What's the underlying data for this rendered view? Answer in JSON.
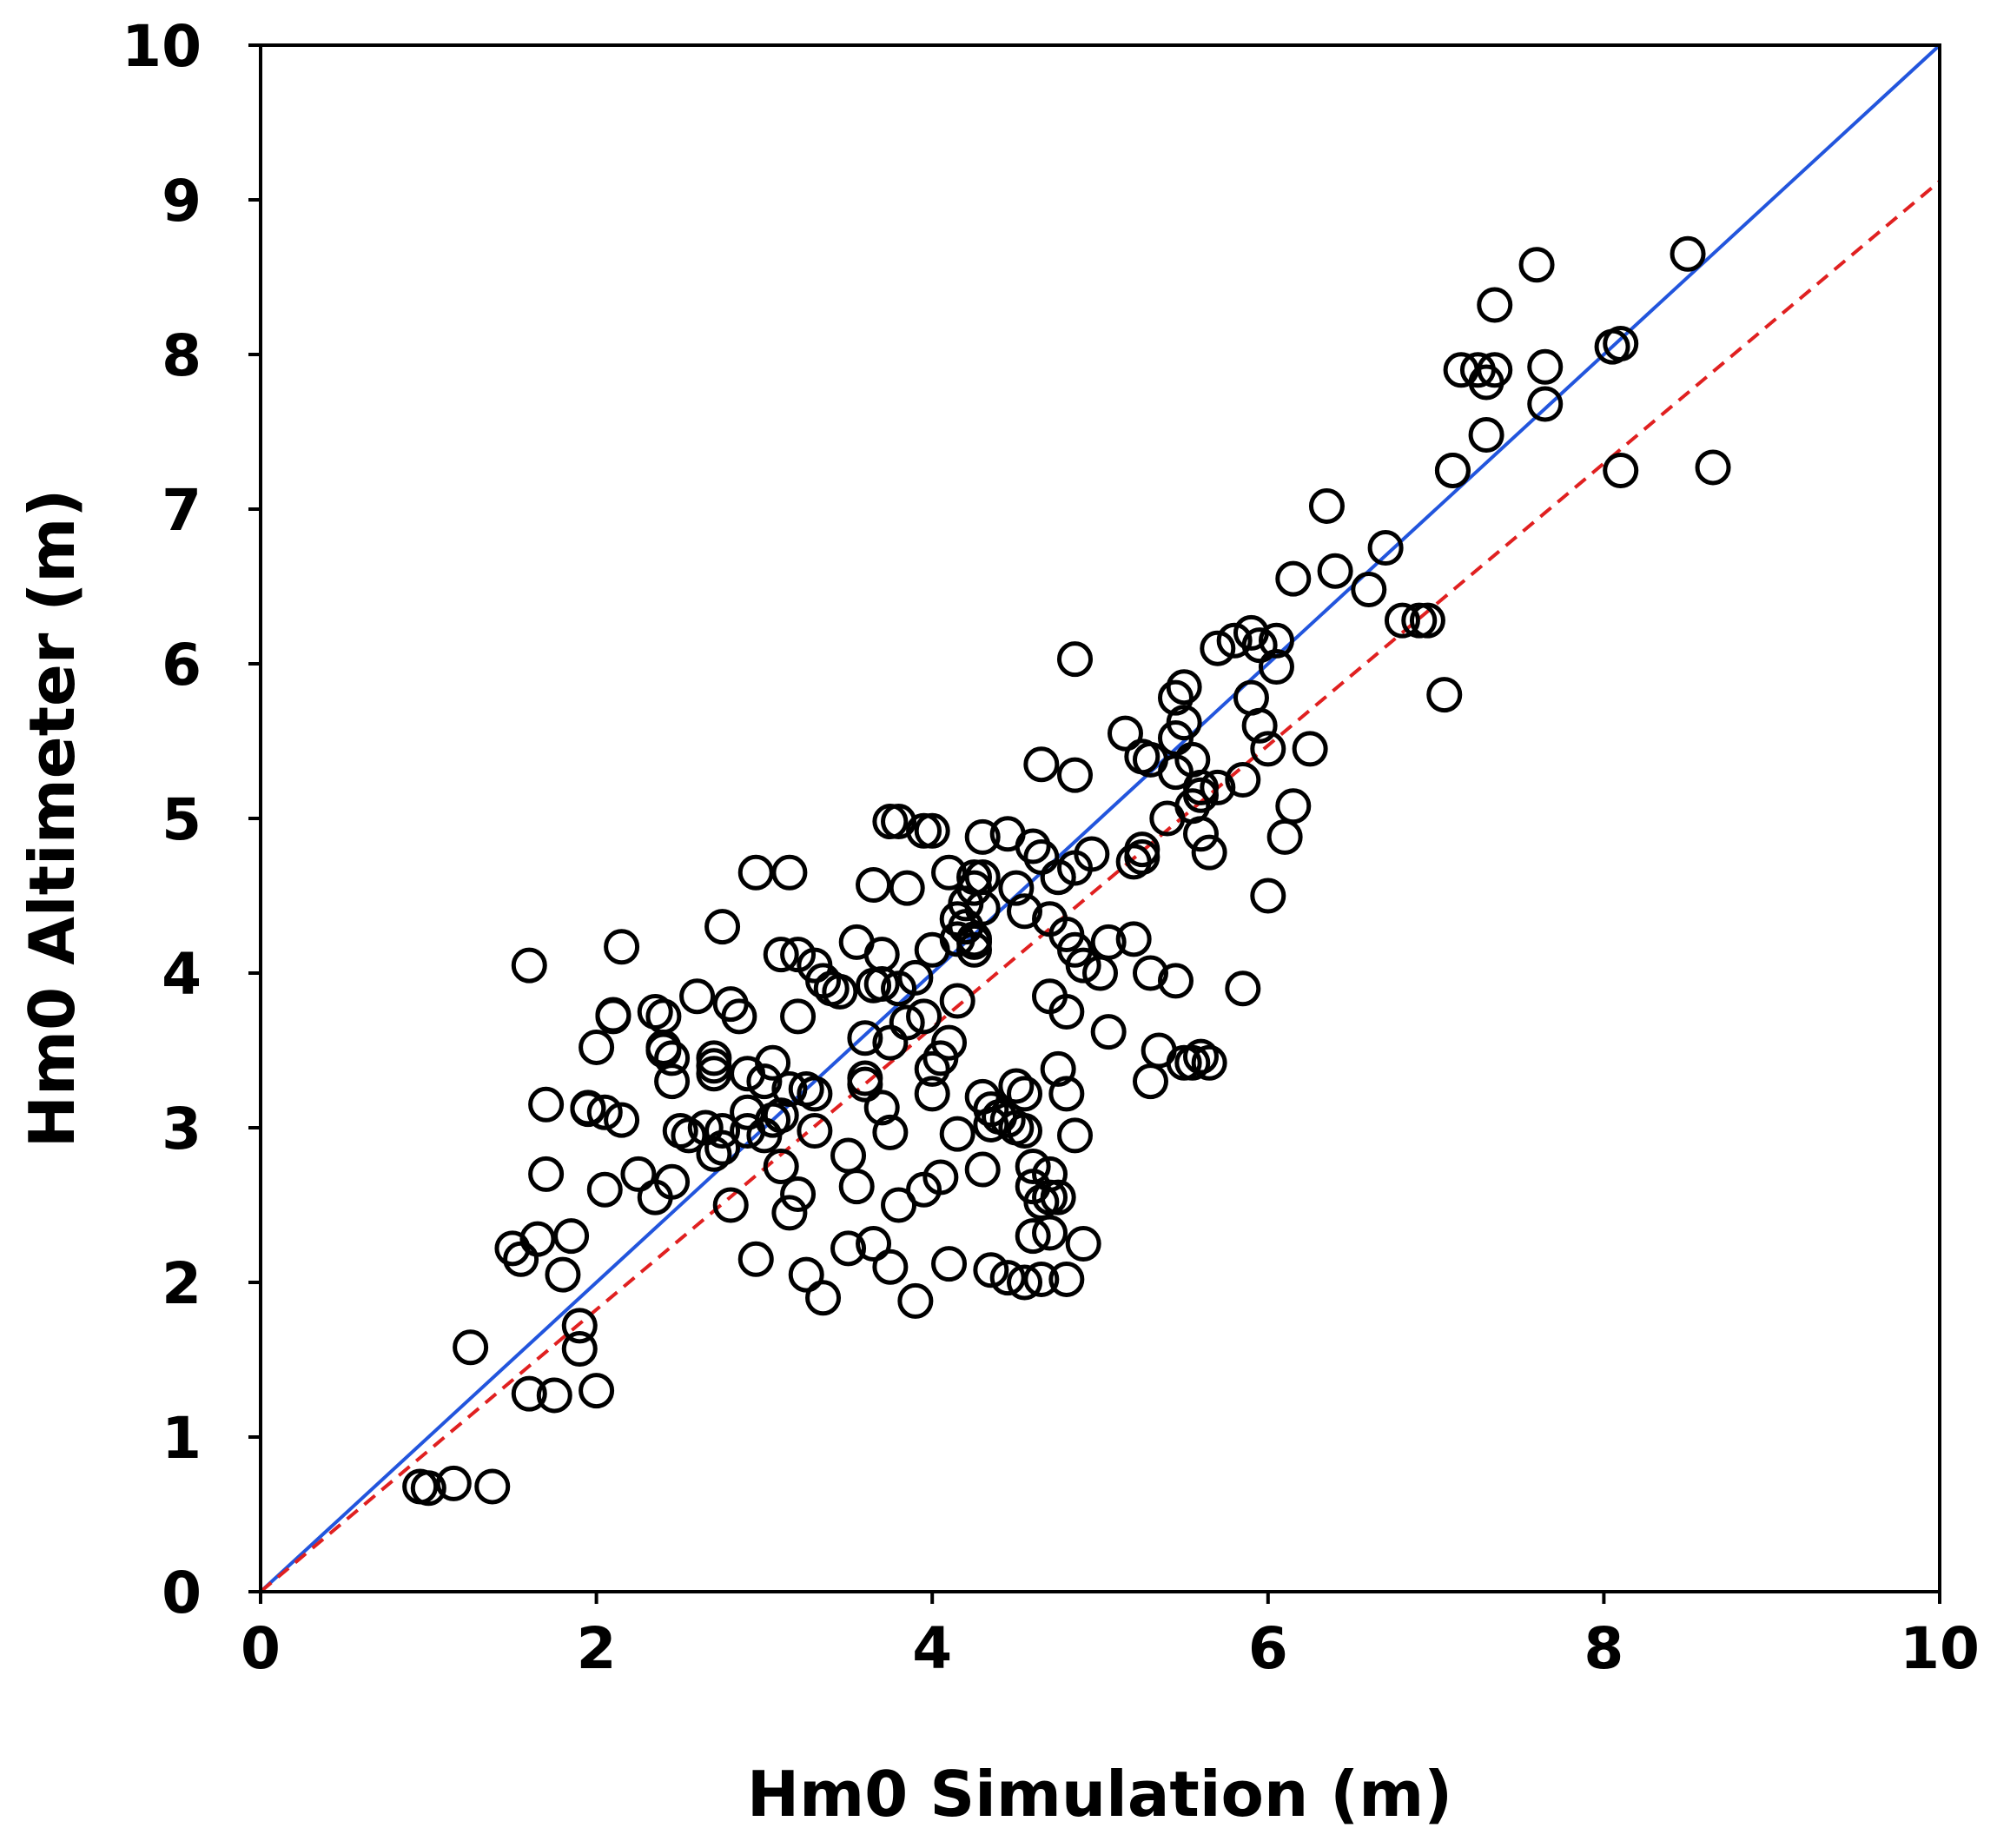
{
  "chart_data": {
    "type": "scatter",
    "title": "",
    "xlabel": "Hm0 Simulation (m)",
    "ylabel": "Hm0 Altimeter (m)",
    "xlim": [
      0,
      10
    ],
    "ylim": [
      0,
      10
    ],
    "xticks": [
      0,
      2,
      4,
      6,
      8,
      10
    ],
    "yticks": [
      0,
      1,
      2,
      3,
      4,
      5,
      6,
      7,
      8,
      9,
      10
    ],
    "grid": false,
    "colors": {
      "identity": "#2255dd",
      "fit": "#e02020",
      "points": "#000000"
    },
    "lines": [
      {
        "name": "1:1 line",
        "style": "solid",
        "color": "#2255dd",
        "x": [
          0,
          10
        ],
        "y": [
          0,
          10
        ]
      },
      {
        "name": "regression fit",
        "style": "dashed",
        "color": "#e02020",
        "x": [
          0,
          10
        ],
        "y": [
          0,
          9.12
        ]
      }
    ],
    "series": [
      {
        "name": "observations",
        "marker": "open-circle",
        "x": [
          0.95,
          1.0,
          1.15,
          1.38,
          1.25,
          1.75,
          1.6,
          1.9,
          2.0,
          1.5,
          1.55,
          1.65,
          1.85,
          1.9,
          1.8,
          1.7,
          1.95,
          2.05,
          2.1,
          2.25,
          2.35,
          2.45,
          2.4,
          2.55,
          2.7,
          2.8,
          2.95,
          3.0,
          3.1,
          3.15,
          3.2,
          3.25,
          3.35,
          3.3,
          3.5,
          3.55,
          3.65,
          3.75,
          3.8,
          3.9,
          3.95,
          4.05,
          4.1,
          4.15,
          4.3,
          4.35,
          4.45,
          4.5,
          4.55,
          4.6,
          4.65,
          4.7,
          4.75,
          4.8,
          4.9,
          2.95,
          3.15,
          3.2,
          3.3,
          3.55,
          3.7,
          3.85,
          3.95,
          4.1,
          4.25,
          4.3,
          4.45,
          4.6,
          4.65,
          4.75,
          4.85,
          1.6,
          1.7,
          1.95,
          2.0,
          2.1,
          2.15,
          2.35,
          2.4,
          2.5,
          2.6,
          2.7,
          2.75,
          2.8,
          2.85,
          2.9,
          3.0,
          3.05,
          3.1,
          3.15,
          3.2,
          3.3,
          3.35,
          3.45,
          3.6,
          3.65,
          3.7,
          3.8,
          3.85,
          3.9,
          4.0,
          4.05,
          4.1,
          4.15,
          4.2,
          4.25,
          4.3,
          4.35,
          4.4,
          4.5,
          4.55,
          4.6,
          4.65,
          4.7,
          4.75,
          4.8,
          4.85,
          4.9,
          5.0,
          5.05,
          5.2,
          5.25,
          5.3,
          5.35,
          5.45,
          5.5,
          5.55,
          5.6,
          5.65,
          5.85,
          5.3,
          2.05,
          2.4,
          2.75,
          2.7,
          3.1,
          3.4,
          3.6,
          3.7,
          3.75,
          4.0,
          4.15,
          4.2,
          4.25,
          4.35,
          4.45,
          4.55,
          4.6,
          4.7,
          4.8,
          4.85,
          4.7,
          4.55,
          4.25,
          4.3,
          3.95,
          3.75,
          3.6,
          3.25,
          3.5,
          2.75,
          2.9,
          3.05,
          2.9,
          2.65,
          2.15,
          2.45,
          2.45,
          2.7,
          3.75,
          4.0,
          4.25,
          4.3,
          4.5,
          4.7,
          4.8,
          4.95,
          5.05,
          5.2,
          5.25,
          5.4,
          5.45,
          5.5,
          5.55,
          5.6,
          5.7,
          5.9,
          5.95,
          6.0,
          6.1,
          6.15,
          6.05,
          5.6,
          5.65,
          5.8,
          5.95,
          5.5,
          5.55,
          5.85,
          6.0,
          5.45,
          5.25,
          5.15,
          5.3,
          5.45,
          5.6,
          5.7,
          5.9,
          6.05,
          6.15,
          6.25,
          6.35,
          6.4,
          6.6,
          6.7,
          6.8,
          6.9,
          6.95,
          7.1,
          7.15,
          7.3,
          7.05,
          7.3,
          7.1,
          7.25,
          7.35,
          7.65,
          7.65,
          7.6,
          7.35,
          8.05,
          8.1,
          8.5,
          8.65,
          8.1,
          4.85,
          4.65,
          3.8,
          3.65,
          4.0,
          4.15,
          4.75,
          4.85
        ],
        "y": [
          0.68,
          0.67,
          0.7,
          0.68,
          1.58,
          1.27,
          1.28,
          1.72,
          1.3,
          2.22,
          2.15,
          2.28,
          2.3,
          1.57,
          2.05,
          2.7,
          3.13,
          2.6,
          3.73,
          2.7,
          2.55,
          2.65,
          3.5,
          2.95,
          2.83,
          2.5,
          2.15,
          2.95,
          2.75,
          2.45,
          2.57,
          2.05,
          1.9,
          2.98,
          2.22,
          2.62,
          2.25,
          2.1,
          2.5,
          1.88,
          2.6,
          2.68,
          2.12,
          2.96,
          2.73,
          2.08,
          2.03,
          3.0,
          2.0,
          2.3,
          2.02,
          2.32,
          2.55,
          2.02,
          2.25,
          4.65,
          4.65,
          4.12,
          4.05,
          4.2,
          4.12,
          4.55,
          4.92,
          4.65,
          4.62,
          4.88,
          4.9,
          4.82,
          4.75,
          4.62,
          4.68,
          4.05,
          3.15,
          3.12,
          3.52,
          3.72,
          4.17,
          3.75,
          3.52,
          2.98,
          3.85,
          3.45,
          4.3,
          3.8,
          3.72,
          3.35,
          3.3,
          3.42,
          4.12,
          3.25,
          3.72,
          3.22,
          3.95,
          3.88,
          3.32,
          3.92,
          3.93,
          3.9,
          3.68,
          3.97,
          3.38,
          3.45,
          3.55,
          3.82,
          4.3,
          4.2,
          3.2,
          3.12,
          3.07,
          3.27,
          2.98,
          2.62,
          2.52,
          2.7,
          3.38,
          3.22,
          2.95,
          4.05,
          4.0,
          3.62,
          4.22,
          4.8,
          4.0,
          3.5,
          3.95,
          3.42,
          3.42,
          3.46,
          3.42,
          3.9,
          3.3,
          3.1,
          3.72,
          2.98,
          3.35,
          3.08,
          3.9,
          3.28,
          3.13,
          2.97,
          3.22,
          4.22,
          4.45,
          4.15,
          3.02,
          3.05,
          3.22,
          2.75,
          2.55,
          3.75,
          4.15,
          3.85,
          4.4,
          4.22,
          4.42,
          3.72,
          3.55,
          3.58,
          3.25,
          2.82,
          2.87,
          3.1,
          3.05,
          2.98,
          3.0,
          3.05,
          3.45,
          3.3,
          3.4,
          4.98,
          4.92,
          4.55,
          4.62,
          4.55,
          4.35,
          4.25,
          4.77,
          4.2,
          4.72,
          4.75,
          5.0,
          5.52,
          5.62,
          5.38,
          4.9,
          5.2,
          5.78,
          5.6,
          4.5,
          4.88,
          5.08,
          6.15,
          5.15,
          4.78,
          6.15,
          6.12,
          5.85,
          5.08,
          5.25,
          5.45,
          5.3,
          5.4,
          5.55,
          5.38,
          5.78,
          5.2,
          6.1,
          6.2,
          5.98,
          6.55,
          5.45,
          7.02,
          6.6,
          6.48,
          6.75,
          6.28,
          6.28,
          6.28,
          7.25,
          7.9,
          7.82,
          5.8,
          7.48,
          7.25,
          7.9,
          8.32,
          7.68,
          7.92,
          8.58,
          7.9,
          8.05,
          8.07,
          8.65,
          7.27,
          7.25,
          6.03,
          5.35,
          4.98,
          4.57,
          4.15,
          4.35,
          4.62,
          5.28
        ]
      }
    ]
  },
  "axes": {
    "x_title": "Hm0 Simulation (m)",
    "y_title": "Hm0 Altimeter (m)",
    "x_tick_labels": [
      "0",
      "2",
      "4",
      "6",
      "8",
      "10"
    ],
    "y_tick_labels": [
      "0",
      "1",
      "2",
      "3",
      "4",
      "5",
      "6",
      "7",
      "8",
      "9",
      "10"
    ]
  }
}
